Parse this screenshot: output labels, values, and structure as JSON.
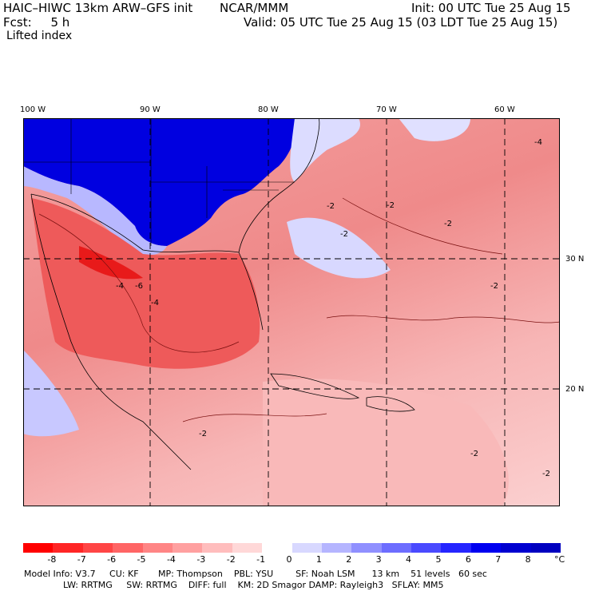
{
  "header": {
    "model": "HAIC–HIWC 13km ARW–GFS init",
    "org": "NCAR/MMM",
    "init": "Init: 00 UTC Tue 25 Aug 15",
    "fcst": "Fcst:     5 h",
    "valid": "Valid: 05 UTC Tue 25 Aug 15 (03 LDT Tue 25 Aug 15)",
    "field": "Lifted index"
  },
  "axes": {
    "lon_labels": [
      "100 W",
      "90 W",
      "80 W",
      "70 W",
      "60 W"
    ],
    "lat_labels": [
      "30 N",
      "20 N"
    ]
  },
  "contour_labels": [
    "-2",
    "-4",
    "-6",
    "-2",
    "-4",
    "-2",
    "-2",
    "-2",
    "-4",
    "-2",
    "-2",
    "-2"
  ],
  "colorbar": {
    "colors": [
      "#ff0000",
      "#ff2525",
      "#ff4545",
      "#ff6565",
      "#ff8585",
      "#ffa0a0",
      "#ffbdbd",
      "#ffd8d8",
      "#ffffff",
      "#d8d8ff",
      "#b5b5ff",
      "#9090ff",
      "#6d6dff",
      "#4a4aff",
      "#2525ff",
      "#0000f0",
      "#0000d0"
    ],
    "labels": [
      "-8",
      "-7",
      "-6",
      "-5",
      "-4",
      "-3",
      "-2",
      "-1",
      "0",
      "1",
      "2",
      "3",
      "4",
      "5",
      "6",
      "7",
      "8"
    ],
    "unit": "°C"
  },
  "model_info": {
    "line1": "Model Info: V3.7     CU: KF       MP: Thompson    PBL: YSU        SF: Noah LSM      13 km    51 levels   60 sec",
    "line2": "              LW: RRTMG     SW: RRTMG    DIFF: full    KM: 2D Smagor DAMP: Rayleigh3   SFLAY: MM5"
  }
}
